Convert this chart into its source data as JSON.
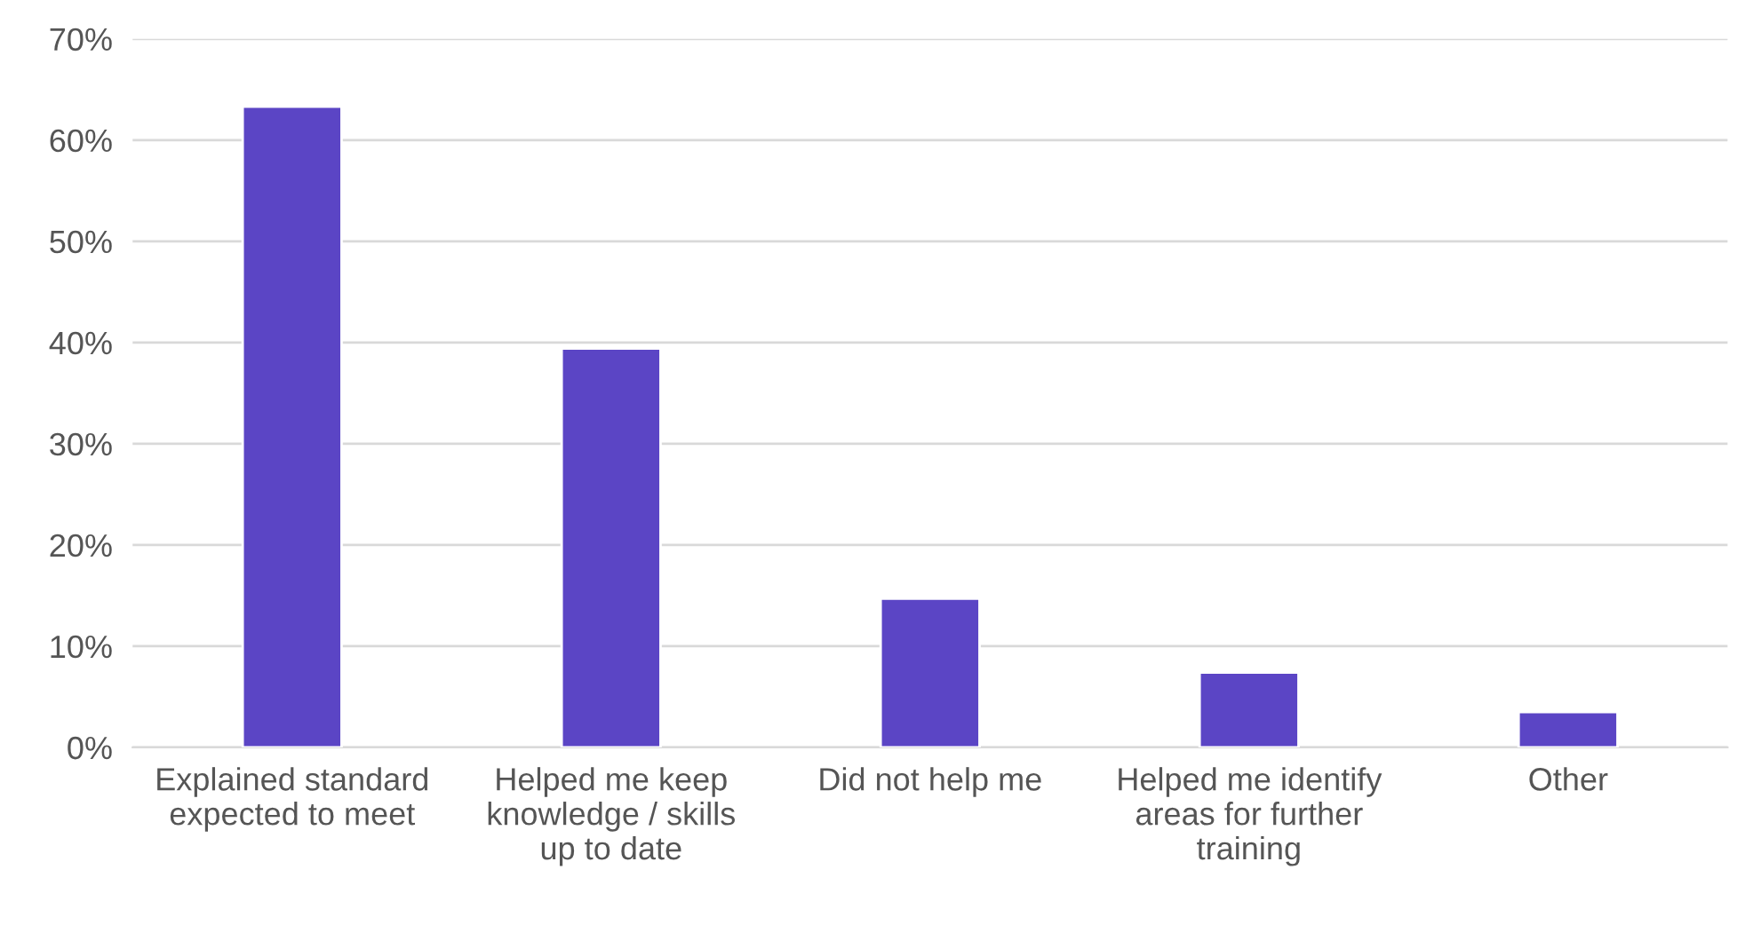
{
  "chart_data": {
    "type": "bar",
    "categories": [
      "Explained standard\nexpected to meet",
      "Helped me keep\nknowledge / skills\nup to date",
      "Did not help me",
      "Helped me identify\nareas for further\ntraining",
      "Other"
    ],
    "values": [
      63.3,
      39.4,
      14.7,
      7.4,
      3.5
    ],
    "color": "#5b45c5",
    "ylim": [
      0,
      70
    ],
    "yticks": [
      {
        "value": 0,
        "label": "0%"
      },
      {
        "value": 10,
        "label": "10%"
      },
      {
        "value": 20,
        "label": "20%"
      },
      {
        "value": 30,
        "label": "30%"
      },
      {
        "value": 40,
        "label": "40%"
      },
      {
        "value": 50,
        "label": "50%"
      },
      {
        "value": 60,
        "label": "60%"
      },
      {
        "value": 70,
        "label": "70%"
      }
    ],
    "grid": "y",
    "legend": false
  }
}
